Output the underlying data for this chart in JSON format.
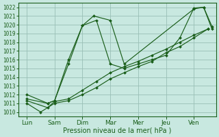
{
  "x_labels": [
    "Lun",
    "Sam",
    "Dim",
    "Mar",
    "Mer",
    "Jeu",
    "Ven"
  ],
  "x_ticks_pos": [
    0,
    1,
    2,
    3,
    4,
    5,
    6
  ],
  "xlabel": "Pression niveau de la mer( hPa )",
  "ylim": [
    1009.5,
    1022.5
  ],
  "yticks": [
    1010,
    1011,
    1012,
    1013,
    1014,
    1015,
    1016,
    1017,
    1018,
    1019,
    1020,
    1021,
    1022
  ],
  "xlim": [
    -0.3,
    6.8
  ],
  "bg_color": "#c8e8e0",
  "grid_color": "#99bfb5",
  "line_color": "#1a5e1a",
  "series": [
    {
      "x": [
        0,
        0.75,
        1.0,
        1.5,
        2.0,
        2.4,
        3.0,
        3.5,
        6.0,
        6.35,
        6.65
      ],
      "y": [
        1012.0,
        1011.0,
        1011.3,
        1016.0,
        1019.9,
        1021.0,
        1020.5,
        1015.5,
        1021.8,
        1022.0,
        1019.5
      ]
    },
    {
      "x": [
        0,
        0.75,
        1.0,
        1.5,
        2.0,
        2.5,
        3.0,
        3.5,
        4.0,
        4.5,
        5.0,
        5.5,
        6.0,
        6.35,
        6.65
      ],
      "y": [
        1011.5,
        1011.0,
        1011.3,
        1015.5,
        1019.9,
        1020.5,
        1015.5,
        1015.0,
        1015.5,
        1016.0,
        1016.5,
        1018.5,
        1021.9,
        1022.0,
        1019.8
      ]
    },
    {
      "x": [
        0,
        0.75,
        1.0,
        1.5,
        2.0,
        2.5,
        3.0,
        3.5,
        4.0,
        4.5,
        5.0,
        5.5,
        6.0,
        6.5
      ],
      "y": [
        1011.3,
        1010.5,
        1011.2,
        1011.5,
        1012.5,
        1013.5,
        1014.5,
        1015.2,
        1015.8,
        1016.5,
        1017.2,
        1018.0,
        1018.8,
        1019.5
      ]
    },
    {
      "x": [
        0,
        0.5,
        1.0,
        1.5,
        2.0,
        2.5,
        3.0,
        3.5,
        4.0,
        4.5,
        5.0,
        5.5,
        6.0,
        6.5
      ],
      "y": [
        1011.0,
        1010.0,
        1011.0,
        1011.3,
        1012.0,
        1012.8,
        1013.8,
        1014.5,
        1015.2,
        1015.8,
        1016.8,
        1017.5,
        1018.5,
        1019.5
      ]
    }
  ]
}
